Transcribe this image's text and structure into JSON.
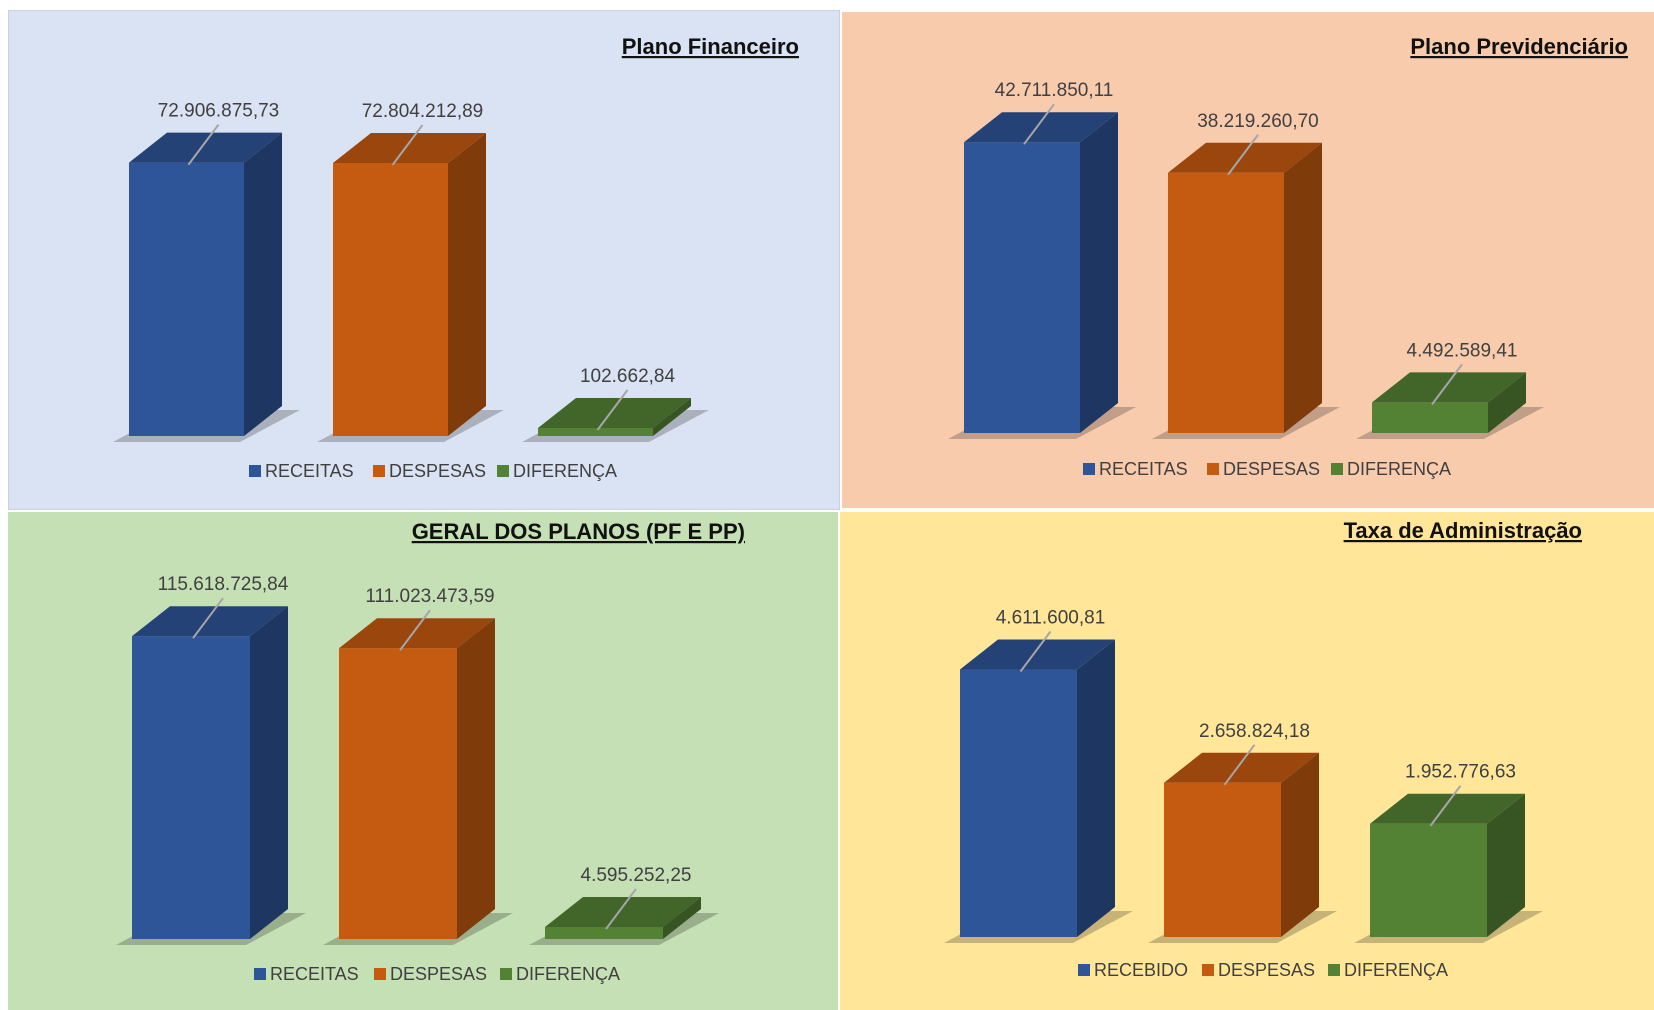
{
  "colors": {
    "blue": "#2e5597",
    "orange": "#c55a11",
    "green": "#548235"
  },
  "chart_data": [
    {
      "type": "bar",
      "title": "Plano Financeiro",
      "background": "#dae3f3",
      "categories": [
        "RECEITAS",
        "DESPESAS",
        "DIFERENÇA"
      ],
      "values": [
        72906875.73,
        72804212.89,
        102662.84
      ],
      "value_labels": [
        "72.906.875,73",
        "72.804.212,89",
        "102.662,84"
      ],
      "ylim": [
        0,
        80000000
      ],
      "legend": "bottom",
      "grid": false
    },
    {
      "type": "bar",
      "title": "Plano Previdenciário",
      "background": "#f8cbad",
      "categories": [
        "RECEITAS",
        "DESPESAS",
        "DIFERENÇA"
      ],
      "values": [
        42711850.11,
        38219260.7,
        4492589.41
      ],
      "value_labels": [
        "42.711.850,11",
        "38.219.260,70",
        "4.492.589,41"
      ],
      "ylim": [
        0,
        47000000
      ],
      "legend": "bottom",
      "grid": false
    },
    {
      "type": "bar",
      "title": "GERAL DOS PLANOS (PF E PP)",
      "background": "#c5e0b4",
      "categories": [
        "RECEITAS",
        "DESPESAS",
        "DIFERENÇA"
      ],
      "values": [
        115618725.84,
        111023473.59,
        4595252.25
      ],
      "value_labels": [
        "115.618.725,84",
        "111.023.473,59",
        "4.595.252,25"
      ],
      "ylim": [
        0,
        126000000
      ],
      "legend": "bottom",
      "grid": false
    },
    {
      "type": "bar",
      "title": "Taxa de Administração",
      "background": "#ffe699",
      "categories": [
        "RECEBIDO",
        "DESPESAS",
        "DIFERENÇA"
      ],
      "values": [
        4611600.81,
        2658824.18,
        1952776.63
      ],
      "value_labels": [
        "4.611.600,81",
        "2.658.824,18",
        "1.952.776,63"
      ],
      "ylim": [
        0,
        5000000
      ],
      "legend": "bottom",
      "grid": false
    }
  ]
}
